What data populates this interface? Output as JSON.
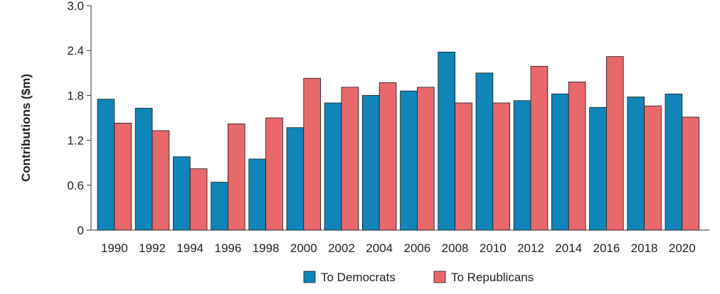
{
  "chart_data": {
    "type": "bar",
    "title": "",
    "xlabel": "",
    "ylabel": "Contributions ($m)",
    "ylim": [
      0,
      3.0
    ],
    "yticks": [
      0,
      0.6,
      1.2,
      1.8,
      2.4,
      3.0
    ],
    "ytick_labels": [
      "0",
      "0.6",
      "1.2",
      "1.8",
      "2.4",
      "3.0"
    ],
    "grid": false,
    "legend_position": "bottom-center",
    "categories": [
      "1990",
      "1992",
      "1994",
      "1996",
      "1998",
      "2000",
      "2002",
      "2004",
      "2006",
      "2008",
      "2010",
      "2012",
      "2014",
      "2016",
      "2018",
      "2020"
    ],
    "series": [
      {
        "name": "To Democrats",
        "color": "#0f85b8",
        "values": [
          1.75,
          1.63,
          0.98,
          0.64,
          0.95,
          1.37,
          1.7,
          1.8,
          1.86,
          2.38,
          2.1,
          1.73,
          1.82,
          1.64,
          1.78,
          1.82
        ]
      },
      {
        "name": "To Republicans",
        "color": "#e8686c",
        "values": [
          1.43,
          1.33,
          0.82,
          1.42,
          1.5,
          2.03,
          1.91,
          1.97,
          1.91,
          1.7,
          1.7,
          2.19,
          1.98,
          2.32,
          1.66,
          1.51
        ]
      }
    ]
  }
}
